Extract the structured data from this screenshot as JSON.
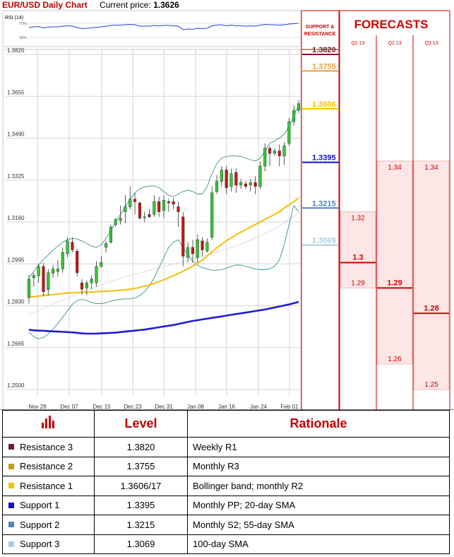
{
  "header": {
    "title": "EUR/USD Daily Chart",
    "price_label": "Current price:",
    "price_value": "1.3626"
  },
  "colors": {
    "red": "#d40000",
    "r3": "#7b1a2e",
    "r2": "#e5a23c",
    "r1": "#f2c200",
    "s1": "#1212cc",
    "s2": "#4f86c0",
    "s3": "#a9cde0",
    "sma20": "#1d1dd4",
    "sma55": "#f5c219",
    "bb": "#3a8f8f",
    "bull": "#2ecc2e",
    "bear": "#d01010",
    "shade": "#fde6e6"
  },
  "chart_data": {
    "type": "candlestick",
    "title": "EUR/USD Daily Chart",
    "ylim": [
      1.25,
      1.39
    ],
    "yticks": [
      "1.3820",
      "1.3655",
      "1.3490",
      "1.3325",
      "1.3160",
      "1.2995",
      "1.2830",
      "1.2665",
      "1.2500"
    ],
    "xticks": [
      "Nov 28",
      "Dec 07",
      "Dec 15",
      "Dec 23",
      "Dec 31",
      "Jan 08",
      "Jan 16",
      "Jan 24",
      "Feb 01"
    ],
    "candles": [
      [
        1.2862,
        1.2952,
        1.2838,
        1.2935
      ],
      [
        1.294,
        1.296,
        1.2905,
        1.295
      ],
      [
        1.2948,
        1.2995,
        1.292,
        1.2985
      ],
      [
        1.2985,
        1.2998,
        1.2868,
        1.2885
      ],
      [
        1.2893,
        1.2975,
        1.287,
        1.296
      ],
      [
        1.2958,
        1.299,
        1.294,
        1.2975
      ],
      [
        1.2965,
        1.301,
        1.2945,
        1.2975
      ],
      [
        1.2975,
        1.306,
        1.296,
        1.304
      ],
      [
        1.3035,
        1.31,
        1.302,
        1.3085
      ],
      [
        1.308,
        1.31,
        1.304,
        1.305
      ],
      [
        1.3045,
        1.3055,
        1.2945,
        1.296
      ],
      [
        1.292,
        1.2935,
        1.2872,
        1.2895
      ],
      [
        1.29,
        1.293,
        1.2872,
        1.292
      ],
      [
        1.292,
        1.295,
        1.2895,
        1.2935
      ],
      [
        1.292,
        1.3005,
        1.2905,
        1.2985
      ],
      [
        1.2985,
        1.3025,
        1.298,
        1.3
      ],
      [
        1.306,
        1.3085,
        1.304,
        1.3075
      ],
      [
        1.308,
        1.315,
        1.3075,
        1.314
      ],
      [
        1.315,
        1.3175,
        1.314,
        1.317
      ],
      [
        1.3165,
        1.3225,
        1.315,
        1.3175
      ],
      [
        1.32,
        1.3265,
        1.3155,
        1.322
      ],
      [
        1.322,
        1.33,
        1.321,
        1.325
      ],
      [
        1.325,
        1.3275,
        1.319,
        1.324
      ],
      [
        1.3235,
        1.324,
        1.317,
        1.3175
      ],
      [
        1.318,
        1.32,
        1.316,
        1.318
      ],
      [
        1.319,
        1.321,
        1.3175,
        1.318
      ],
      [
        1.319,
        1.3265,
        1.318,
        1.324
      ],
      [
        1.324,
        1.326,
        1.318,
        1.32
      ],
      [
        1.3205,
        1.3265,
        1.3175,
        1.3245
      ],
      [
        1.324,
        1.325,
        1.32,
        1.3235
      ],
      [
        1.324,
        1.3255,
        1.321,
        1.323
      ],
      [
        1.322,
        1.324,
        1.314,
        1.32
      ],
      [
        1.318,
        1.32,
        1.2985,
        1.3025
      ],
      [
        1.302,
        1.308,
        1.3,
        1.306
      ],
      [
        1.306,
        1.309,
        1.3,
        1.3035
      ],
      [
        1.302,
        1.311,
        1.3,
        1.309
      ],
      [
        1.3085,
        1.31,
        1.3025,
        1.305
      ],
      [
        1.3045,
        1.3095,
        1.304,
        1.308
      ],
      [
        1.31,
        1.33,
        1.309,
        1.3275
      ],
      [
        1.328,
        1.3345,
        1.327,
        1.332
      ],
      [
        1.332,
        1.338,
        1.33,
        1.3365
      ],
      [
        1.3365,
        1.338,
        1.327,
        1.3295
      ],
      [
        1.33,
        1.337,
        1.328,
        1.335
      ],
      [
        1.3355,
        1.337,
        1.3275,
        1.3305
      ],
      [
        1.3305,
        1.333,
        1.329,
        1.3315
      ],
      [
        1.331,
        1.332,
        1.329,
        1.33
      ],
      [
        1.3305,
        1.333,
        1.328,
        1.3315
      ],
      [
        1.3315,
        1.334,
        1.327,
        1.33
      ],
      [
        1.33,
        1.34,
        1.329,
        1.338
      ],
      [
        1.338,
        1.347,
        1.336,
        1.345
      ],
      [
        1.345,
        1.346,
        1.338,
        1.343
      ],
      [
        1.343,
        1.345,
        1.342,
        1.344
      ],
      [
        1.344,
        1.3465,
        1.338,
        1.342
      ],
      [
        1.342,
        1.3475,
        1.3385,
        1.346
      ],
      [
        1.347,
        1.357,
        1.346,
        1.3555
      ],
      [
        1.3555,
        1.362,
        1.354,
        1.36
      ],
      [
        1.36,
        1.364,
        1.359,
        1.3626
      ]
    ],
    "sma55": [
      1.2863,
      1.2865,
      1.2868,
      1.287,
      1.2872,
      1.2874,
      1.2876,
      1.2878,
      1.288,
      1.2881,
      1.2882,
      1.2883,
      1.2883,
      1.2884,
      1.2885,
      1.2886,
      1.2887,
      1.2888,
      1.289,
      1.2891,
      1.2893,
      1.2895,
      1.2898,
      1.2902,
      1.2907,
      1.2912,
      1.2918,
      1.2925,
      1.2932,
      1.294,
      1.2948,
      1.2957,
      1.2966,
      1.2976,
      1.2986,
      1.2998,
      1.301,
      1.3026,
      1.3042,
      1.3058,
      1.3072,
      1.3086,
      1.3098,
      1.311,
      1.312,
      1.313,
      1.314,
      1.315,
      1.316,
      1.317,
      1.318,
      1.319,
      1.32,
      1.3215,
      1.3228,
      1.324,
      1.3255
    ],
    "sma100": [
      1.2795,
      1.2803,
      1.2811,
      1.2819,
      1.2827,
      1.2835,
      1.2843,
      1.2851,
      1.2859,
      1.2867,
      1.2875,
      1.2883,
      1.2891,
      1.2898,
      1.2905,
      1.2912,
      1.2919,
      1.2926,
      1.2932,
      1.2938,
      1.2944,
      1.2949,
      1.2954,
      1.2959,
      1.2964,
      1.2969,
      1.2974,
      1.2979,
      1.2984,
      1.2989,
      1.2994,
      1.2999,
      1.3004,
      1.3009,
      1.3014,
      1.3019,
      1.3024,
      1.3029,
      1.3035,
      1.3041,
      1.3047,
      1.3053,
      1.3059,
      1.3066,
      1.3073,
      1.3081,
      1.3089,
      1.3097,
      1.3106,
      1.3115,
      1.3124,
      1.3134,
      1.3145,
      1.3157,
      1.317,
      1.3184,
      1.3198
    ],
    "sma200": [
      1.2735,
      1.2733,
      1.2732,
      1.2731,
      1.273,
      1.2729,
      1.2728,
      1.2727,
      1.2726,
      1.2725,
      1.2723,
      1.2721,
      1.272,
      1.272,
      1.272,
      1.2721,
      1.2722,
      1.2723,
      1.2724,
      1.2726,
      1.2728,
      1.273,
      1.2732,
      1.2734,
      1.2736,
      1.2739,
      1.2742,
      1.2745,
      1.2748,
      1.2751,
      1.2754,
      1.2758,
      1.2762,
      1.2766,
      1.277,
      1.2773,
      1.2776,
      1.2779,
      1.2782,
      1.2785,
      1.2788,
      1.2791,
      1.2794,
      1.2797,
      1.28,
      1.2803,
      1.2806,
      1.2809,
      1.2812,
      1.2815,
      1.2819,
      1.2823,
      1.2827,
      1.2831,
      1.2835,
      1.284,
      1.2845
    ],
    "bb_upper": [
      1.294,
      1.2965,
      1.299,
      1.3012,
      1.303,
      1.3048,
      1.3065,
      1.308,
      1.309,
      1.3095,
      1.3093,
      1.3085,
      1.3075,
      1.3065,
      1.306,
      1.307,
      1.3095,
      1.3125,
      1.316,
      1.319,
      1.322,
      1.325,
      1.3275,
      1.329,
      1.3298,
      1.3302,
      1.3302,
      1.3295,
      1.328,
      1.3265,
      1.326,
      1.327,
      1.328,
      1.3285,
      1.328,
      1.327,
      1.327,
      1.33,
      1.335,
      1.339,
      1.3412,
      1.3418,
      1.342,
      1.342,
      1.3418,
      1.3412,
      1.3405,
      1.34,
      1.341,
      1.344,
      1.347,
      1.348,
      1.349,
      1.3505,
      1.3535,
      1.358,
      1.362
    ],
    "bb_lower": [
      1.2725,
      1.2708,
      1.27,
      1.2705,
      1.2718,
      1.2738,
      1.276,
      1.2785,
      1.281,
      1.2835,
      1.285,
      1.2855,
      1.285,
      1.2843,
      1.2838,
      1.2838,
      1.2842,
      1.2848,
      1.2852,
      1.2855,
      1.2857,
      1.2857,
      1.286,
      1.287,
      1.2885,
      1.2908,
      1.294,
      1.298,
      1.302,
      1.306,
      1.308,
      1.309,
      1.306,
      1.303,
      1.3005,
      1.299,
      1.298,
      1.2975,
      1.297,
      1.297,
      1.2972,
      1.2978,
      1.2985,
      1.299,
      1.299,
      1.2985,
      1.298,
      1.2975,
      1.2972,
      1.2972,
      1.2975,
      1.2985,
      1.301,
      1.307,
      1.315,
      1.3225,
      1.32
    ],
    "rsi": {
      "label": "RSI (14)",
      "levels": [
        "70%",
        "30%"
      ],
      "values": [
        58,
        60,
        61,
        57,
        59,
        60,
        60,
        62,
        63,
        62,
        58,
        55,
        56,
        57,
        59,
        60,
        62,
        64,
        65,
        65,
        66,
        67,
        66,
        62,
        62,
        62,
        64,
        63,
        64,
        64,
        63,
        62,
        52,
        54,
        53,
        56,
        55,
        56,
        63,
        65,
        66,
        63,
        65,
        63,
        63,
        62,
        63,
        62,
        65,
        67,
        66,
        66,
        65,
        66,
        68,
        69,
        70
      ]
    },
    "levels": [
      {
        "name": "Resistance 3",
        "value": "1.3820",
        "v": 1.382,
        "color": "#7b1a2e"
      },
      {
        "name": "Resistance 2",
        "value": "1.3755",
        "v": 1.3755,
        "color": "#e5a23c"
      },
      {
        "name": "Resistance 1",
        "value": "1.3606",
        "v": 1.3606,
        "color": "#f2c200"
      },
      {
        "name": "Support 1",
        "value": "1.3395",
        "v": 1.3395,
        "color": "#1212cc"
      },
      {
        "name": "Support 2",
        "value": "1.3215",
        "v": 1.3215,
        "color": "#4f86c0"
      },
      {
        "name": "Support 3",
        "value": "1.3069",
        "v": 1.3069,
        "color": "#a9cde0"
      }
    ],
    "forecasts": {
      "title": "FORECASTS",
      "sr_label": "SUPPORT & RESISTANCE",
      "columns": [
        {
          "label": "Q1 13",
          "high": "1.32",
          "mid": "1.3",
          "low": "1.29",
          "h": 1.32,
          "m": 1.3,
          "l": 1.29
        },
        {
          "label": "Q2 13",
          "high": "1.34",
          "mid": "1.29",
          "low": "1.26",
          "h": 1.34,
          "m": 1.29,
          "l": 1.26
        },
        {
          "label": "Q3 13",
          "high": "1.34",
          "mid": "1.28",
          "low": "1.25",
          "h": 1.34,
          "m": 1.28,
          "l": 1.25
        }
      ]
    }
  },
  "table": {
    "head_level": "Level",
    "head_rationale": "Rationale",
    "rows": [
      {
        "name": "Resistance 3",
        "level": "1.3820",
        "rationale": "Weekly R1",
        "color": "#7b1a2e"
      },
      {
        "name": "Resistance 2",
        "level": "1.3755",
        "rationale": "Monthly R3",
        "color": "#c79a1e"
      },
      {
        "name": "Resistance 1",
        "level": "1.3606/17",
        "rationale": "Bollinger band; monthly R2",
        "color": "#f2c200"
      },
      {
        "name": "Support 1",
        "level": "1.3395",
        "rationale": "Monthly PP; 20-day SMA",
        "color": "#1212cc"
      },
      {
        "name": "Support 2",
        "level": "1.3215",
        "rationale": "Monthly S2; 55-day SMA",
        "color": "#4f86c0"
      },
      {
        "name": "Support 3",
        "level": "1.3069",
        "rationale": "100-day SMA",
        "color": "#a9cde0"
      }
    ]
  }
}
